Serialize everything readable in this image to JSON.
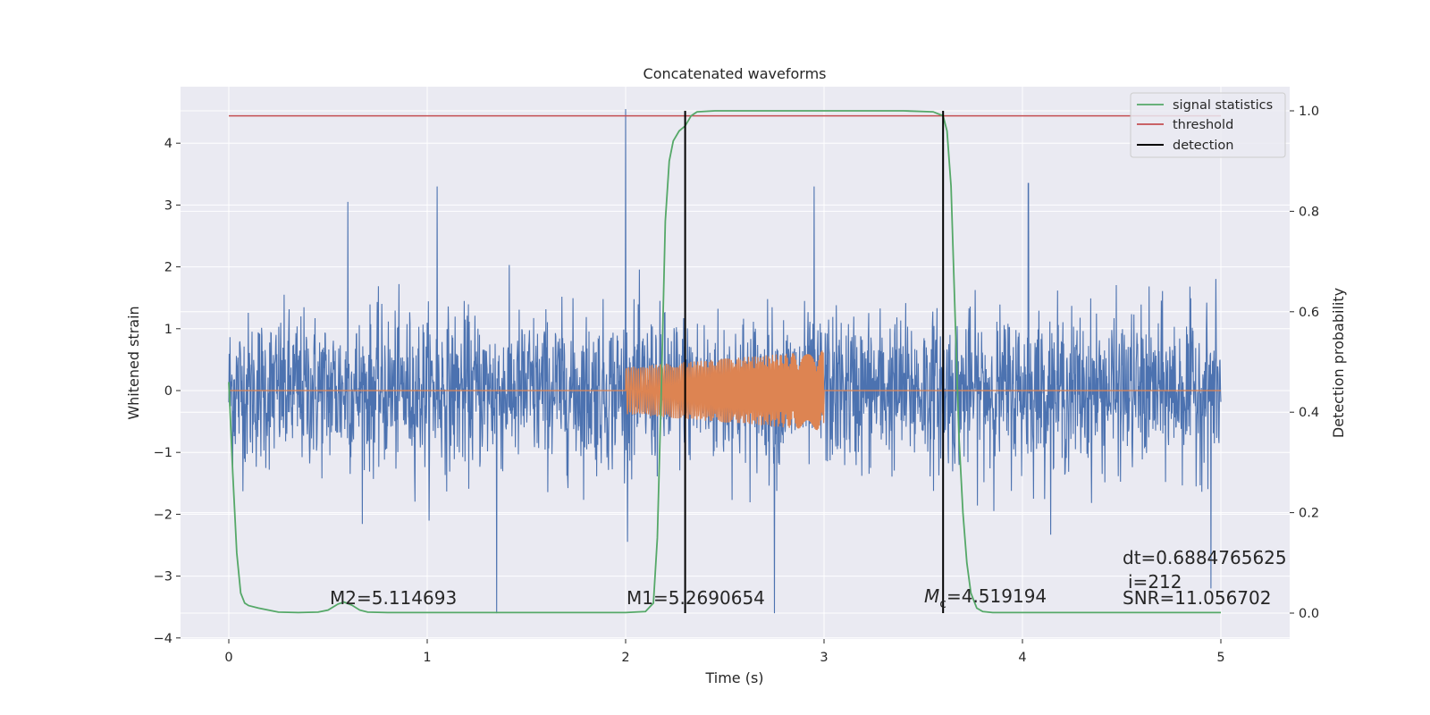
{
  "chart_data": {
    "type": "line",
    "title": "Concatenated waveforms",
    "xlabel": "Time (s)",
    "ylabel": "Whitened strain",
    "y2label": "Detection probability",
    "xlim": [
      -0.25,
      5.35
    ],
    "ylim": [
      -4.0,
      4.95
    ],
    "y2lim": [
      -0.045,
      1.04
    ],
    "xticks": [
      0,
      1,
      2,
      3,
      4,
      5
    ],
    "xtick_labels": [
      "0",
      "1",
      "2",
      "3",
      "4",
      "5"
    ],
    "yticks": [
      -4,
      -3,
      -2,
      -1,
      0,
      1,
      2,
      3,
      4
    ],
    "ytick_labels": [
      "−4",
      "−3",
      "−2",
      "−1",
      "0",
      "1",
      "2",
      "3",
      "4"
    ],
    "y2ticks": [
      0.0,
      0.2,
      0.4,
      0.6,
      0.8,
      1.0
    ],
    "y2tick_labels": [
      "0.0",
      "0.2",
      "0.4",
      "0.6",
      "0.8",
      "1.0"
    ],
    "grid": true,
    "legend_position": "top-right",
    "colors": {
      "background": "#eaeaf2",
      "grid": "#ffffff",
      "noise": "#4c72b0",
      "signal": "#dd8452",
      "statistics": "#55a868",
      "threshold": "#c44e52",
      "detection": "#000000"
    },
    "series": [
      {
        "key": "noise",
        "axis": "left",
        "description_range": [
          0,
          5
        ],
        "envelope_typical": 1.3,
        "notable_spikes": [
          {
            "x": 2.0,
            "y": 4.55
          },
          {
            "x": 1.05,
            "y": 3.3
          },
          {
            "x": 0.6,
            "y": 3.05
          },
          {
            "x": 2.95,
            "y": 3.3
          },
          {
            "x": 4.03,
            "y": 3.35
          },
          {
            "x": 1.35,
            "y": -3.6
          },
          {
            "x": 2.75,
            "y": -3.6
          },
          {
            "x": 4.95,
            "y": -3.2
          }
        ]
      },
      {
        "key": "signal",
        "axis": "left",
        "start": 2.0,
        "end": 3.0,
        "amp_start": [
          0.38,
          -0.38
        ],
        "amp_end": [
          0.65,
          -0.65
        ]
      },
      {
        "key": "statistics",
        "name": "signal statistics",
        "axis": "right",
        "x": [
          0,
          0.02,
          0.04,
          0.06,
          0.08,
          0.1,
          0.15,
          0.25,
          0.35,
          0.45,
          0.5,
          0.55,
          0.58,
          0.62,
          0.66,
          0.7,
          0.8,
          1.0,
          1.5,
          2.0,
          2.1,
          2.14,
          2.16,
          2.18,
          2.2,
          2.22,
          2.24,
          2.27,
          2.3,
          2.33,
          2.36,
          2.45,
          2.6,
          3.0,
          3.4,
          3.55,
          3.6,
          3.62,
          3.64,
          3.66,
          3.68,
          3.7,
          3.72,
          3.74,
          3.77,
          3.8,
          3.85,
          3.9,
          4.0,
          4.5,
          5.0
        ],
        "y": [
          0.46,
          0.28,
          0.12,
          0.04,
          0.02,
          0.015,
          0.01,
          0.002,
          0.001,
          0.002,
          0.006,
          0.018,
          0.022,
          0.016,
          0.006,
          0.002,
          0.001,
          0.001,
          0.001,
          0.001,
          0.003,
          0.02,
          0.15,
          0.45,
          0.78,
          0.9,
          0.94,
          0.96,
          0.97,
          0.99,
          0.998,
          1.0,
          1.0,
          1.0,
          1.0,
          0.998,
          0.99,
          0.96,
          0.85,
          0.6,
          0.35,
          0.2,
          0.1,
          0.04,
          0.01,
          0.003,
          0.001,
          0.001,
          0.001,
          0.001,
          0.001
        ]
      },
      {
        "key": "threshold",
        "name": "threshold",
        "axis": "right",
        "x": [
          0,
          5
        ],
        "y": [
          0.99,
          0.99
        ]
      },
      {
        "key": "detection",
        "name": "detection",
        "axis": "right",
        "segments": [
          {
            "x": 2.3,
            "y": [
              0.0,
              1.0
            ]
          },
          {
            "x": 3.6,
            "y": [
              0.0,
              1.0
            ]
          }
        ]
      }
    ],
    "legend": [
      {
        "label": "signal statistics",
        "color": "#55a868"
      },
      {
        "label": "threshold",
        "color": "#c44e52"
      },
      {
        "label": "detection",
        "color": "#000000"
      }
    ],
    "annotations": {
      "m2": "M2=5.114693",
      "m1": "M1=5.2690654",
      "mc_symbol": "M",
      "mc_sub": "c",
      "mc_value": "=4.519194",
      "dt": "dt=0.6884765625",
      "i": "i=212",
      "snr": "SNR=11.056702"
    }
  }
}
